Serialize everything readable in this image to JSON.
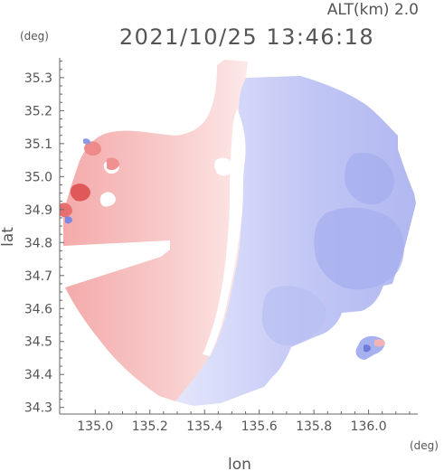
{
  "header": {
    "altitude_label": "ALT(km) 2.0",
    "datetime": "2021/10/25 13:46:18"
  },
  "axes": {
    "y_unit": "(deg)",
    "x_unit": "(deg)",
    "y_label": "lat",
    "x_label": "lon"
  },
  "chart_data": {
    "type": "map",
    "xlim": [
      134.87,
      136.18
    ],
    "ylim": [
      34.28,
      35.36
    ],
    "x_ticks": [
      "135.0",
      "135.2",
      "135.4",
      "135.6",
      "135.8",
      "136.0"
    ],
    "y_ticks": [
      "35.3",
      "35.2",
      "35.1",
      "35.0",
      "34.9",
      "34.8",
      "34.7",
      "34.6",
      "34.5",
      "34.4",
      "34.3"
    ],
    "x_tick_values": [
      135.0,
      135.2,
      135.4,
      135.6,
      135.8,
      136.0
    ],
    "y_tick_values": [
      35.3,
      35.2,
      35.1,
      35.0,
      34.9,
      34.8,
      34.7,
      34.6,
      34.5,
      34.4,
      34.3
    ],
    "radar_center": [
      135.43,
      34.76
    ],
    "colors": {
      "approaching": "#a9b4f2",
      "receding": "#f4a8a8",
      "neutral": "#ffffff",
      "strong_receding": "#d83c3c",
      "strong_approaching": "#5b6bd6"
    }
  }
}
